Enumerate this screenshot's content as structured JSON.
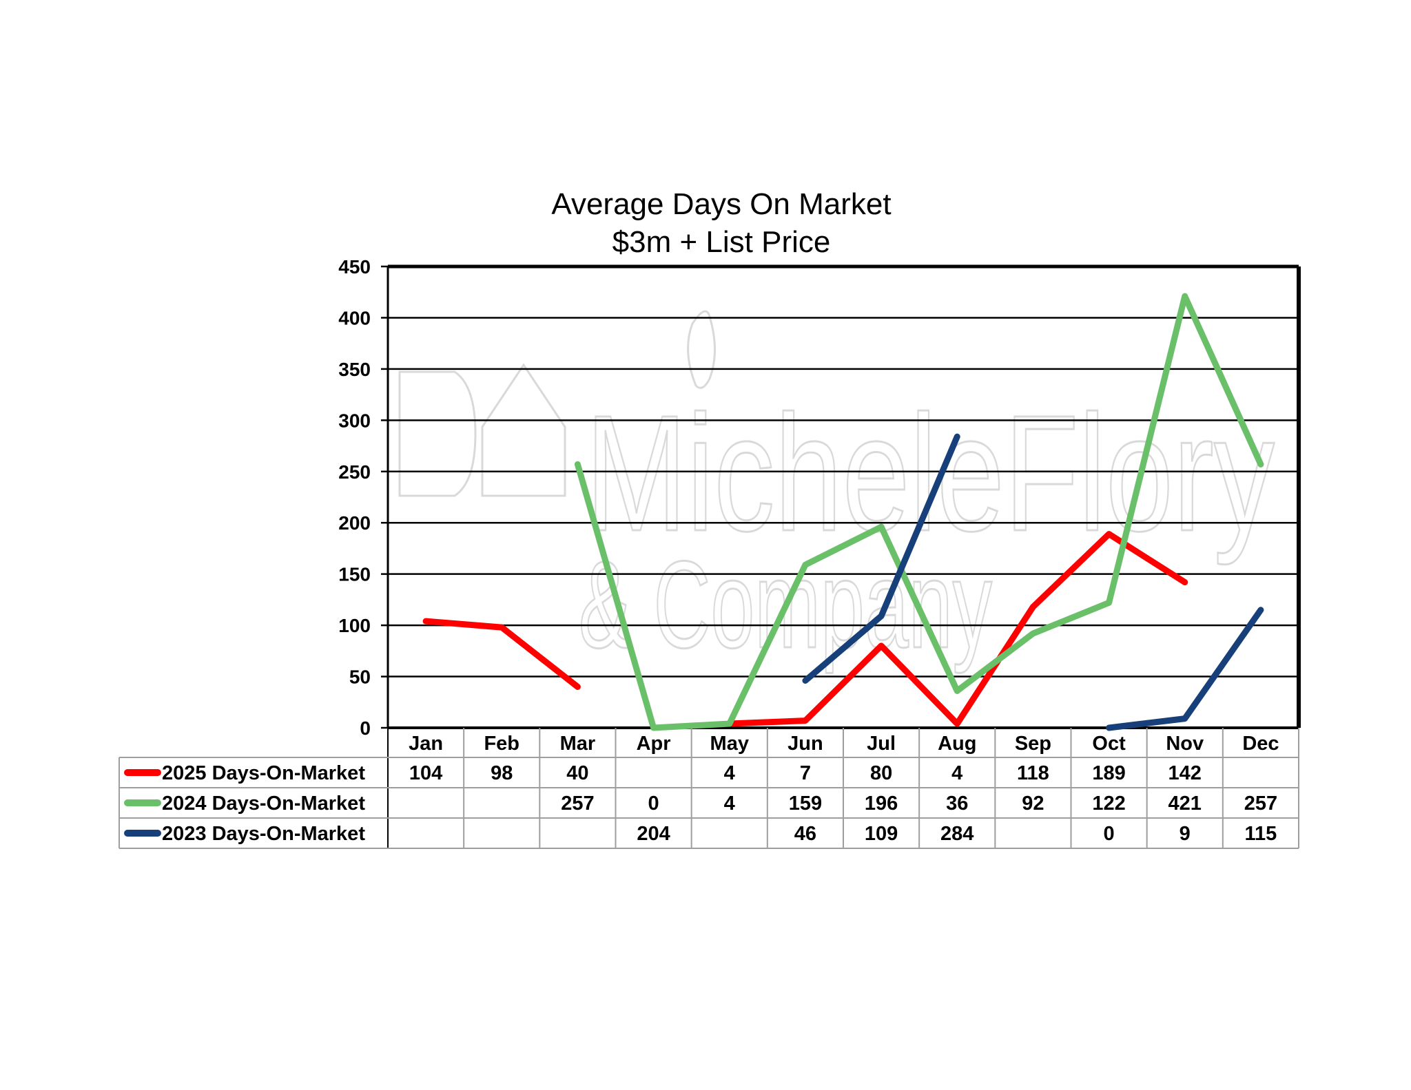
{
  "chart_data": {
    "type": "line",
    "title": "Average Days On Market",
    "subtitle": "$3m + List Price",
    "categories": [
      "Jan",
      "Feb",
      "Mar",
      "Apr",
      "May",
      "Jun",
      "Jul",
      "Aug",
      "Sep",
      "Oct",
      "Nov",
      "Dec"
    ],
    "ylim": [
      0,
      450
    ],
    "yticks": [
      0,
      50,
      100,
      150,
      200,
      250,
      300,
      350,
      400,
      450
    ],
    "grid": true,
    "series": [
      {
        "name": "2025 Days-On-Market",
        "color": "#ff0000",
        "values": [
          104,
          98,
          40,
          null,
          4,
          7,
          80,
          4,
          118,
          189,
          142,
          null
        ]
      },
      {
        "name": "2024 Days-On-Market",
        "color": "#6abf69",
        "values": [
          null,
          null,
          257,
          0,
          4,
          159,
          196,
          36,
          92,
          122,
          421,
          257
        ]
      },
      {
        "name": "2023 Days-On-Market",
        "color": "#17407a",
        "values": [
          null,
          null,
          null,
          204,
          null,
          46,
          109,
          284,
          null,
          0,
          9,
          115
        ]
      }
    ]
  },
  "watermark": {
    "line1": "MicheleFlory",
    "line2": "& Company"
  }
}
